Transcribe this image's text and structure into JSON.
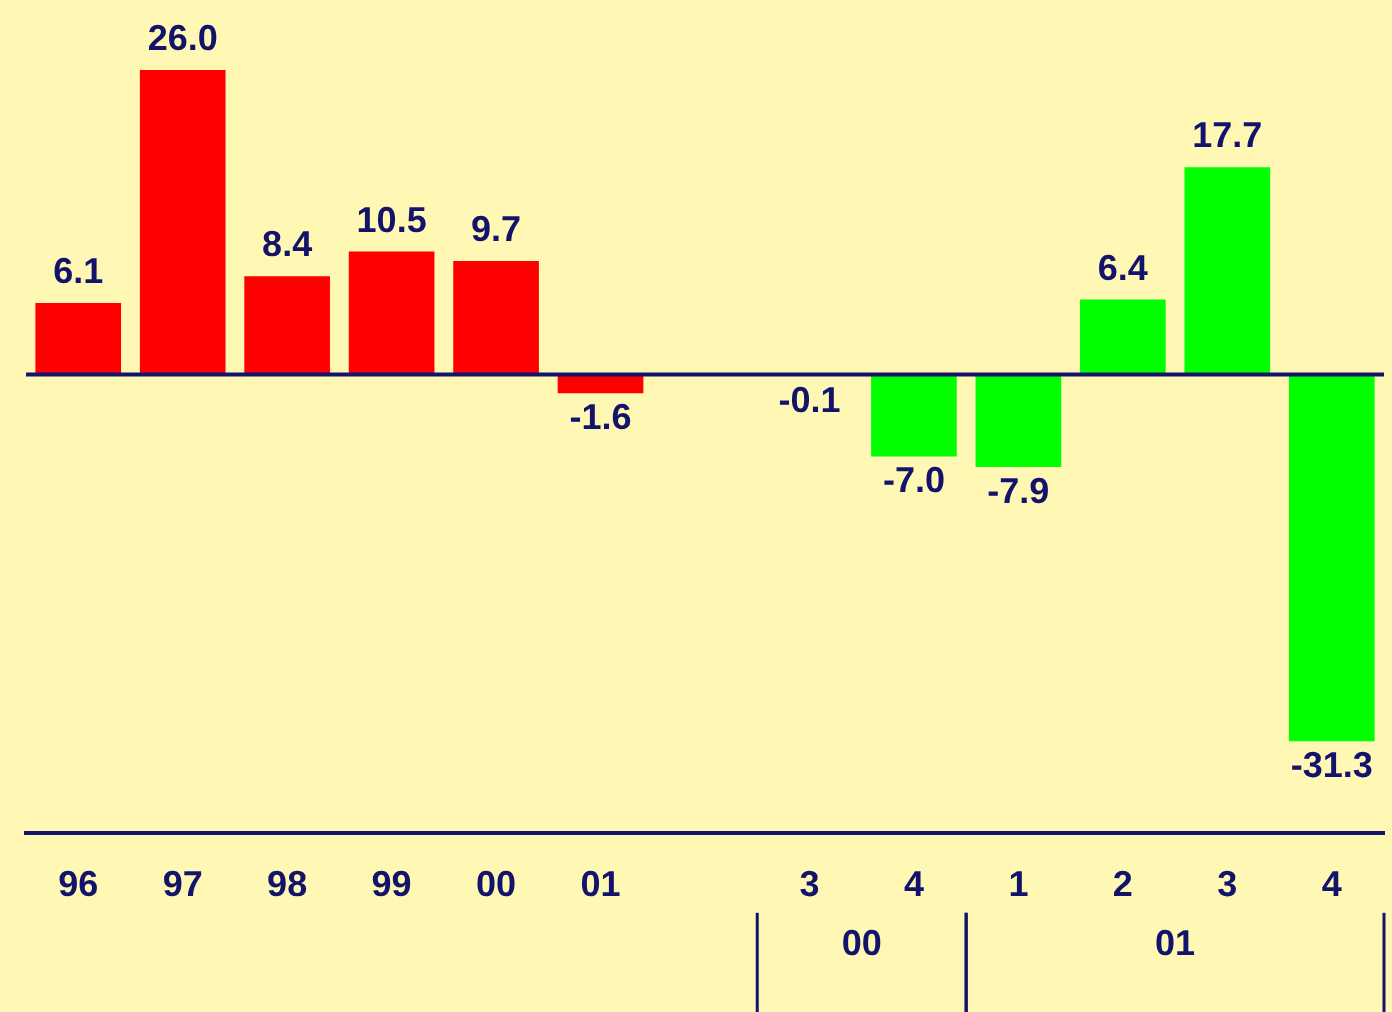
{
  "chart_data": {
    "type": "bar",
    "categories": [
      "96",
      "97",
      "98",
      "99",
      "00",
      "01",
      null,
      "3",
      "4",
      "1",
      "2",
      "3",
      "4"
    ],
    "values": [
      6.1,
      26.0,
      8.4,
      10.5,
      9.7,
      -1.6,
      null,
      -0.1,
      -7.0,
      -7.9,
      6.4,
      17.7,
      -31.3
    ],
    "colors": [
      "#ff0000",
      "#ff0000",
      "#ff0000",
      "#ff0000",
      "#ff0000",
      "#ff0000",
      "#ff0000",
      "#00ff00",
      "#00ff00",
      "#00ff00",
      "#00ff00",
      "#00ff00",
      "#00ff00"
    ],
    "annotations": [
      "00",
      "01"
    ],
    "value_labels": [
      "6.1",
      "26.0",
      "8.4",
      "10.5",
      "9.7",
      "-1.6",
      null,
      "-0.1",
      "-7.0",
      "-7.9",
      "6.4",
      "17.7",
      "-31.3"
    ],
    "ref_lines": [
      {
        "axis": "y",
        "value": 0,
        "color": "#13136b"
      }
    ],
    "grid": false,
    "legend": false
  }
}
